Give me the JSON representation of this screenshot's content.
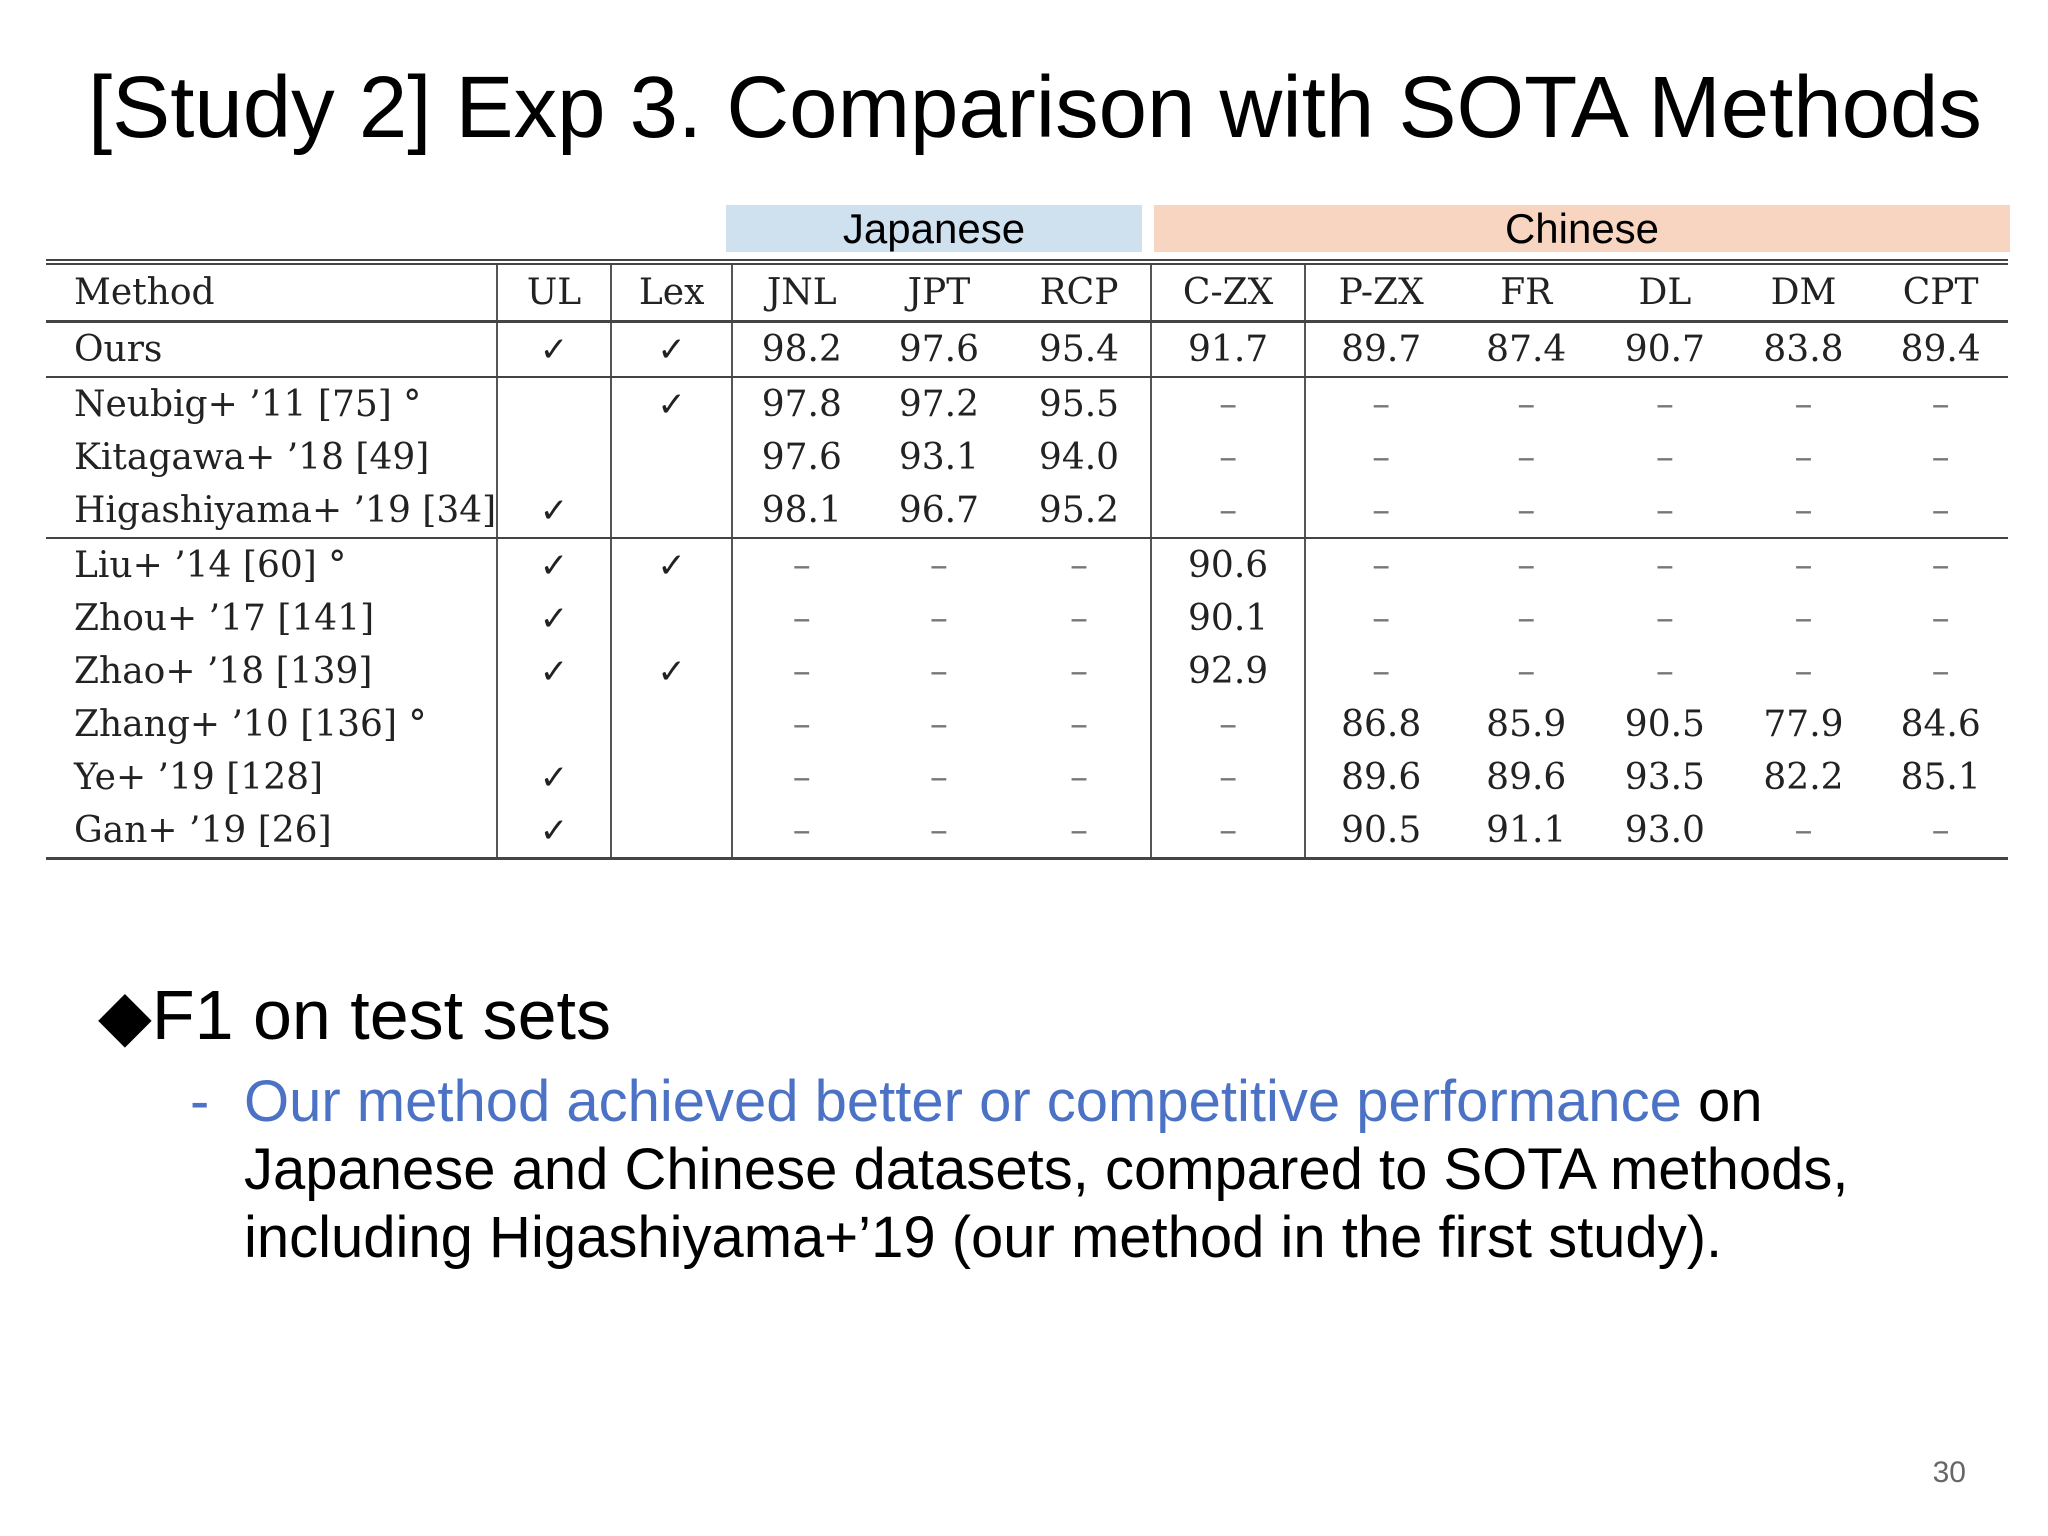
{
  "slide": {
    "title": "[Study 2] Exp 3. Comparison with SOTA Methods",
    "page_number": "30"
  },
  "language_bands": {
    "japanese": "Japanese",
    "chinese": "Chinese"
  },
  "table": {
    "headers": [
      "Method",
      "UL",
      "Lex",
      "JNL",
      "JPT",
      "RCP",
      "C-ZX",
      "P-ZX",
      "FR",
      "DL",
      "DM",
      "CPT"
    ],
    "check_symbol": "✓",
    "dash_symbol": "–",
    "rows": [
      {
        "method": "Ours",
        "ul": "✓",
        "lex": "✓",
        "vals": [
          "98.2",
          "97.6",
          "95.4",
          "91.7",
          "89.7",
          "87.4",
          "90.7",
          "83.8",
          "89.4"
        ]
      },
      {
        "method": "Neubig+ ’11 [75] °",
        "ul": "",
        "lex": "✓",
        "vals": [
          "97.8",
          "97.2",
          "95.5",
          "–",
          "–",
          "–",
          "–",
          "–",
          "–"
        ]
      },
      {
        "method": "Kitagawa+ ’18 [49]",
        "ul": "",
        "lex": "",
        "vals": [
          "97.6",
          "93.1",
          "94.0",
          "–",
          "–",
          "–",
          "–",
          "–",
          "–"
        ]
      },
      {
        "method": "Higashiyama+ ’19 [34]",
        "ul": "✓",
        "lex": "",
        "vals": [
          "98.1",
          "96.7",
          "95.2",
          "–",
          "–",
          "–",
          "–",
          "–",
          "–"
        ]
      },
      {
        "method": "Liu+ ’14 [60] °",
        "ul": "✓",
        "lex": "✓",
        "vals": [
          "–",
          "–",
          "–",
          "90.6",
          "–",
          "–",
          "–",
          "–",
          "–"
        ]
      },
      {
        "method": "Zhou+ ’17 [141]",
        "ul": "✓",
        "lex": "",
        "vals": [
          "–",
          "–",
          "–",
          "90.1",
          "–",
          "–",
          "–",
          "–",
          "–"
        ]
      },
      {
        "method": "Zhao+ ’18 [139]",
        "ul": "✓",
        "lex": "✓",
        "vals": [
          "–",
          "–",
          "–",
          "92.9",
          "–",
          "–",
          "–",
          "–",
          "–"
        ]
      },
      {
        "method": "Zhang+ ’10 [136] °",
        "ul": "",
        "lex": "",
        "vals": [
          "–",
          "–",
          "–",
          "–",
          "86.8",
          "85.9",
          "90.5",
          "77.9",
          "84.6"
        ]
      },
      {
        "method": "Ye+ ’19 [128]",
        "ul": "✓",
        "lex": "",
        "vals": [
          "–",
          "–",
          "–",
          "–",
          "89.6",
          "89.6",
          "93.5",
          "82.2",
          "85.1"
        ]
      },
      {
        "method": "Gan+ ’19 [26]",
        "ul": "✓",
        "lex": "",
        "vals": [
          "–",
          "–",
          "–",
          "–",
          "90.5",
          "91.1",
          "93.0",
          "–",
          "–"
        ]
      }
    ]
  },
  "bullets": {
    "diamond": "◆",
    "main": "F1 on test sets",
    "sub_dash": "-",
    "sub_highlight": "Our method achieved better or competitive performance",
    "sub_rest": " on Japanese and Chinese datasets, compared to SOTA methods, including Higashiyama+’19 (our method in the first study)."
  },
  "colors": {
    "japanese_band": "#cfe0ef",
    "chinese_band": "#f7d5c0",
    "highlight_text": "#4b72c4"
  }
}
